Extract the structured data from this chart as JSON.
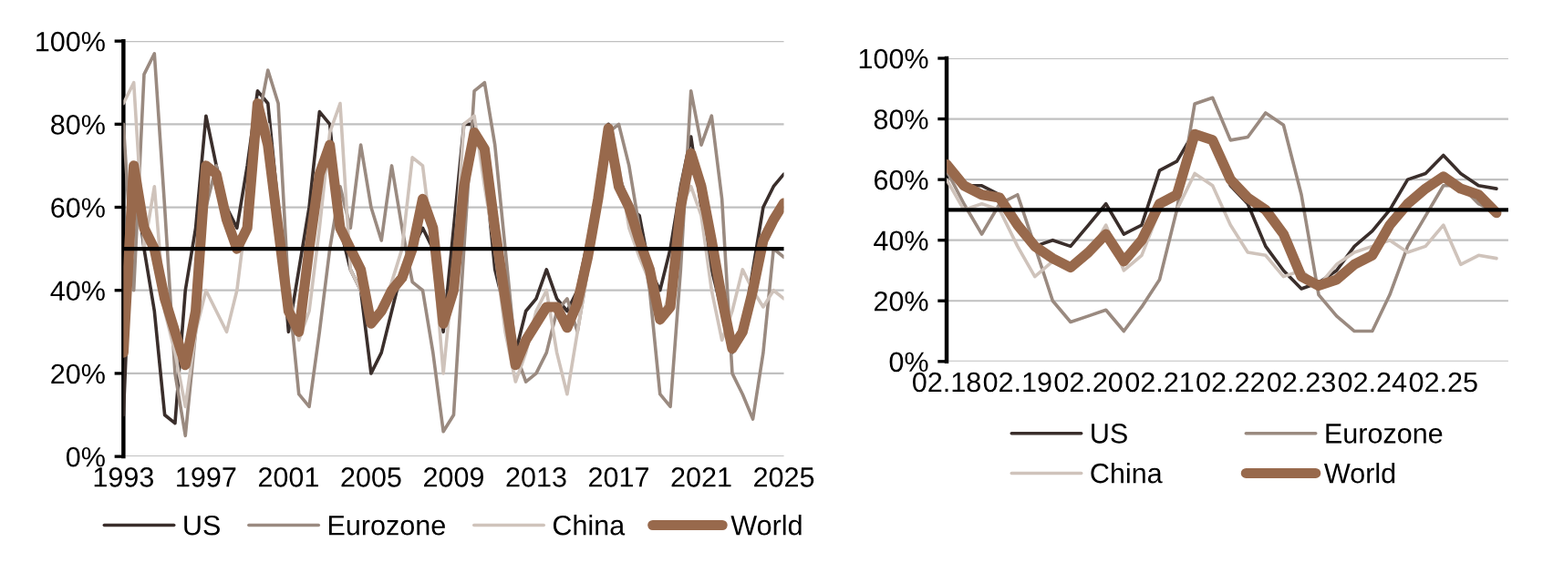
{
  "chart_data": [
    {
      "type": "line",
      "x": [
        1993,
        1993.5,
        1994,
        1994.5,
        1995,
        1995.5,
        1996,
        1996.5,
        1997,
        1997.5,
        1998,
        1998.5,
        1999,
        1999.5,
        2000,
        2000.5,
        2001,
        2001.5,
        2002,
        2002.5,
        2003,
        2003.5,
        2004,
        2004.5,
        2005,
        2005.5,
        2006,
        2006.5,
        2007,
        2007.5,
        2008,
        2008.5,
        2009,
        2009.5,
        2010,
        2010.5,
        2011,
        2011.5,
        2012,
        2012.5,
        2013,
        2013.5,
        2014,
        2014.5,
        2015,
        2015.5,
        2016,
        2016.5,
        2017,
        2017.5,
        2018,
        2018.5,
        2019,
        2019.5,
        2020,
        2020.5,
        2021,
        2021.5,
        2022,
        2022.5,
        2023,
        2023.5,
        2024,
        2024.5,
        2025
      ],
      "series": [
        {
          "name": "US",
          "color": "#3a2e2b",
          "values": [
            10,
            70,
            50,
            35,
            10,
            8,
            40,
            55,
            82,
            70,
            60,
            55,
            70,
            88,
            85,
            60,
            30,
            45,
            60,
            83,
            80,
            55,
            45,
            40,
            20,
            25,
            35,
            45,
            50,
            55,
            50,
            30,
            55,
            80,
            80,
            70,
            45,
            35,
            25,
            35,
            38,
            45,
            38,
            35,
            40,
            52,
            65,
            80,
            68,
            60,
            58,
            45,
            40,
            50,
            65,
            77,
            60,
            45,
            35,
            25,
            30,
            45,
            60,
            65,
            68
          ]
        },
        {
          "name": "Eurozone",
          "color": "#9a8a80",
          "values": [
            80,
            40,
            92,
            97,
            60,
            20,
            5,
            30,
            60,
            70,
            55,
            50,
            55,
            80,
            93,
            85,
            40,
            15,
            12,
            30,
            50,
            65,
            55,
            75,
            60,
            52,
            70,
            55,
            42,
            40,
            25,
            6,
            10,
            50,
            88,
            90,
            75,
            50,
            25,
            18,
            20,
            25,
            35,
            38,
            30,
            45,
            60,
            78,
            80,
            70,
            55,
            40,
            15,
            12,
            45,
            88,
            75,
            82,
            62,
            20,
            15,
            9,
            25,
            50,
            48
          ]
        },
        {
          "name": "China",
          "color": "#cfc3bb",
          "values": [
            85,
            90,
            50,
            65,
            35,
            25,
            12,
            30,
            40,
            35,
            30,
            40,
            60,
            78,
            80,
            60,
            40,
            28,
            35,
            55,
            78,
            85,
            45,
            40,
            32,
            35,
            42,
            50,
            72,
            70,
            50,
            20,
            45,
            80,
            82,
            65,
            50,
            30,
            18,
            25,
            35,
            40,
            25,
            15,
            30,
            45,
            60,
            75,
            70,
            55,
            48,
            42,
            32,
            40,
            60,
            65,
            58,
            40,
            28,
            35,
            45,
            40,
            36,
            40,
            38
          ]
        },
        {
          "name": "World",
          "color": "#98694c",
          "values": [
            25,
            70,
            55,
            50,
            38,
            30,
            22,
            35,
            70,
            68,
            57,
            50,
            55,
            85,
            75,
            55,
            35,
            30,
            50,
            68,
            75,
            55,
            50,
            45,
            32,
            35,
            40,
            43,
            50,
            62,
            55,
            32,
            40,
            65,
            78,
            74,
            55,
            38,
            22,
            28,
            32,
            36,
            36,
            31,
            37,
            48,
            62,
            79,
            65,
            60,
            52,
            45,
            33,
            36,
            60,
            73,
            65,
            52,
            38,
            26,
            30,
            40,
            52,
            57,
            61
          ]
        }
      ],
      "xlim": [
        1993,
        2025
      ],
      "xticks": [
        1993,
        1997,
        2001,
        2005,
        2009,
        2013,
        2017,
        2021,
        2025
      ],
      "ylim": [
        0,
        100
      ],
      "yticks": [
        {
          "value": 0,
          "label": "0%"
        },
        {
          "value": 20,
          "label": "20%"
        },
        {
          "value": 40,
          "label": "40%"
        },
        {
          "value": 60,
          "label": "60%"
        },
        {
          "value": 80,
          "label": "80%"
        },
        {
          "value": 100,
          "label": "100%"
        }
      ],
      "ref_lines": [
        {
          "axis": "y",
          "value": 50,
          "color": "#000000"
        }
      ],
      "grid": "y",
      "legend": "bottom",
      "line_style": "solid",
      "marker": "none"
    },
    {
      "type": "line",
      "x": [
        "2018-02",
        "2018-05",
        "2018-08",
        "2018-11",
        "2019-02",
        "2019-05",
        "2019-08",
        "2019-11",
        "2020-02",
        "2020-05",
        "2020-08",
        "2020-11",
        "2021-02",
        "2021-05",
        "2021-08",
        "2021-11",
        "2022-02",
        "2022-05",
        "2022-08",
        "2022-11",
        "2023-02",
        "2023-05",
        "2023-08",
        "2023-11",
        "2024-02",
        "2024-05",
        "2024-08",
        "2024-11",
        "2025-02",
        "2025-05",
        "2025-08",
        "2025-11"
      ],
      "series": [
        {
          "name": "US",
          "color": "#3a2e2b",
          "values": [
            62,
            58,
            58,
            55,
            45,
            38,
            40,
            38,
            45,
            52,
            42,
            45,
            63,
            66,
            76,
            73,
            58,
            52,
            38,
            30,
            24,
            26,
            30,
            38,
            43,
            50,
            60,
            62,
            68,
            62,
            58,
            57
          ]
        },
        {
          "name": "Eurozone",
          "color": "#9a8a80",
          "values": [
            63,
            52,
            42,
            52,
            55,
            38,
            20,
            13,
            15,
            17,
            10,
            18,
            27,
            50,
            85,
            87,
            73,
            74,
            82,
            78,
            55,
            22,
            15,
            10,
            10,
            22,
            38,
            48,
            58,
            58,
            52,
            49
          ]
        },
        {
          "name": "China",
          "color": "#cfc3bb",
          "values": [
            60,
            50,
            52,
            50,
            38,
            28,
            33,
            30,
            35,
            45,
            30,
            35,
            50,
            50,
            62,
            58,
            45,
            36,
            35,
            28,
            30,
            25,
            32,
            36,
            38,
            40,
            36,
            38,
            45,
            32,
            35,
            34
          ]
        },
        {
          "name": "World",
          "color": "#98694c",
          "values": [
            65,
            58,
            55,
            54,
            45,
            38,
            34,
            31,
            36,
            42,
            33,
            40,
            52,
            55,
            75,
            73,
            60,
            54,
            50,
            42,
            28,
            25,
            27,
            32,
            35,
            45,
            52,
            57,
            61,
            57,
            55,
            49
          ]
        }
      ],
      "xlim": [
        "2018-02",
        "2026-01"
      ],
      "xticks": [
        {
          "value": "2018-02",
          "label": "02.18"
        },
        {
          "value": "2019-02",
          "label": "02.19"
        },
        {
          "value": "2020-02",
          "label": "02.20"
        },
        {
          "value": "2021-02",
          "label": "02.21"
        },
        {
          "value": "2022-02",
          "label": "02.22"
        },
        {
          "value": "2023-02",
          "label": "02.23"
        },
        {
          "value": "2024-02",
          "label": "02.24"
        },
        {
          "value": "2025-02",
          "label": "02.25"
        }
      ],
      "ylim": [
        0,
        100
      ],
      "yticks": [
        {
          "value": 0,
          "label": "0%"
        },
        {
          "value": 20,
          "label": "20%"
        },
        {
          "value": 40,
          "label": "40%"
        },
        {
          "value": 60,
          "label": "60%"
        },
        {
          "value": 80,
          "label": "80%"
        },
        {
          "value": 100,
          "label": "100%"
        }
      ],
      "ref_lines": [
        {
          "axis": "y",
          "value": 50,
          "color": "#000000"
        }
      ],
      "grid": "y",
      "legend": "bottom",
      "line_style": "solid",
      "marker": "none"
    }
  ]
}
